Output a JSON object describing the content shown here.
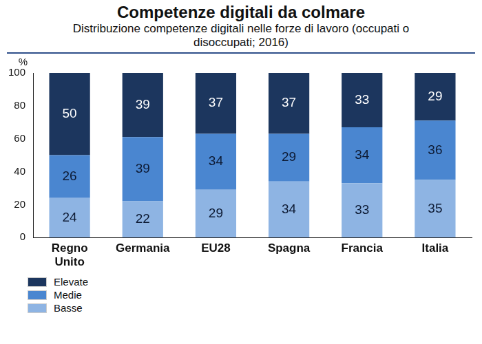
{
  "chart_data": {
    "type": "bar",
    "title": "Competenze digitali da colmare",
    "subtitle": "Distribuzione competenze digitali nelle forze di lavoro (occupati o disoccupati; 2016)",
    "y_label": "%",
    "categories": [
      "Regno Unito",
      "Germania",
      "EU28",
      "Spagna",
      "Francia",
      "Italia"
    ],
    "series": [
      {
        "name": "Basse",
        "color": "#8eb4e3",
        "values": [
          24,
          22,
          29,
          34,
          33,
          35
        ]
      },
      {
        "name": "Medie",
        "color": "#4a86d0",
        "values": [
          26,
          39,
          34,
          29,
          34,
          36
        ]
      },
      {
        "name": "Elevate",
        "color": "#1c365e",
        "values": [
          50,
          39,
          37,
          37,
          33,
          29
        ]
      }
    ],
    "ylim": [
      0,
      100
    ],
    "yticks": [
      0,
      20,
      40,
      60,
      80,
      100
    ],
    "stacked": true,
    "data_labels": true,
    "grid": false,
    "legend": "bottom"
  }
}
